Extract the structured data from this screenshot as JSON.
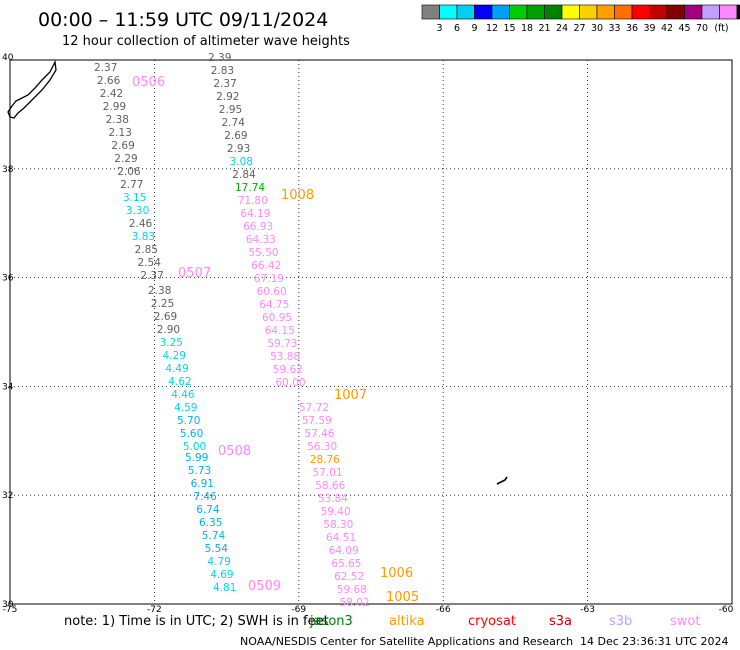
{
  "title": "00:00 – 11:59 UTC 09/11/2024",
  "subtitle": "12 hour collection of altimeter wave heights",
  "legend": {
    "colors": [
      "#808080",
      "#00ffff",
      "#00d0f0",
      "#0000ff",
      "#00a0ff",
      "#00cc00",
      "#00a000",
      "#008000",
      "#ffff00",
      "#ffd000",
      "#ffa000",
      "#ff7000",
      "#ff0000",
      "#c00000",
      "#800000",
      "#a00080",
      "#c0a0ff",
      "#ff88ff",
      "#000000"
    ],
    "labels": [
      "3",
      "6",
      "9",
      "12",
      "15",
      "18",
      "21",
      "24",
      "27",
      "30",
      "33",
      "36",
      "39",
      "42",
      "45",
      "70",
      "(ft)"
    ]
  },
  "map": {
    "lon_range": [
      -75,
      -60
    ],
    "lat_range": [
      30,
      40
    ],
    "lon_ticks": [
      "-75",
      "-72",
      "-69",
      "-66",
      "-63",
      "-60"
    ],
    "lat_ticks": [
      "40",
      "38",
      "36",
      "34",
      "32",
      "30"
    ]
  },
  "tracks": [
    {
      "tag": "0506",
      "color_name": "gray-cyan",
      "values": [
        "2.37",
        "2.66",
        "2.42",
        "2.99",
        "2.38",
        "2.13",
        "2.69",
        "2.29",
        "2.06",
        "2.77",
        "3.15",
        "3.30",
        "2.46",
        "3.83",
        "2.85",
        "2.54",
        "2.37"
      ]
    },
    {
      "tag": "0507",
      "values": [
        "2.38",
        "2.25",
        "2.69",
        "2.90",
        "3.25",
        "4.29",
        "4.49",
        "4.62",
        "4.46",
        "4.59",
        "5.70",
        "5.60",
        "5.00"
      ]
    },
    {
      "tag": "0508",
      "values": [
        "5.99",
        "5.73",
        "6.91",
        "7.46",
        "6.74",
        "6.35",
        "5.74",
        "5.54",
        "4.79",
        "4.69",
        "4.81"
      ]
    },
    {
      "tag": "0509"
    },
    {
      "tag": "1008",
      "values": [
        "2.39",
        "2.83",
        "2.37",
        "2.92",
        "2.95",
        "2.74",
        "2.69",
        "2.93",
        "3.08",
        "2.84",
        "17.74",
        "71.80",
        "64.19",
        "66.93",
        "64.33",
        "55.50",
        "66.42",
        "67.19",
        "60.60",
        "64.75",
        "60.95",
        "64.15",
        "59.73",
        "53.88",
        "59.62",
        "60.00"
      ]
    },
    {
      "tag": "1007",
      "values": [
        "57.72",
        "57.59",
        "57.46",
        "56.30",
        "28.76",
        "57.01",
        "58.66",
        "53.84",
        "59.40",
        "58.30",
        "64.51",
        "64.09",
        "65.65",
        "62.52",
        "59.68",
        "58.02"
      ]
    },
    {
      "tag": "1006"
    },
    {
      "tag": "1005"
    }
  ],
  "note": "note:  1) Time is in UTC; 2) SWH is in feet",
  "satellites": [
    {
      "name": "jason3",
      "color": "#008000"
    },
    {
      "name": "altika",
      "color": "#ff9900"
    },
    {
      "name": "cryosat",
      "color": "#ff0000"
    },
    {
      "name": "s3a",
      "color": "#c00000"
    },
    {
      "name": "s3b",
      "color": "#c0a0ff"
    },
    {
      "name": "swot",
      "color": "#ff88ff"
    }
  ],
  "credit": "NOAA/NESDIS Center for Satellite Applications and Research",
  "timestamp": "14 Dec 23:36:31 UTC 2024",
  "colors": {
    "gray": "#606060",
    "cyan": "#00d8e8",
    "blue": "#00b0f0",
    "pink": "#ff88ff",
    "green": "#00aa00",
    "orange": "#ff9900"
  }
}
